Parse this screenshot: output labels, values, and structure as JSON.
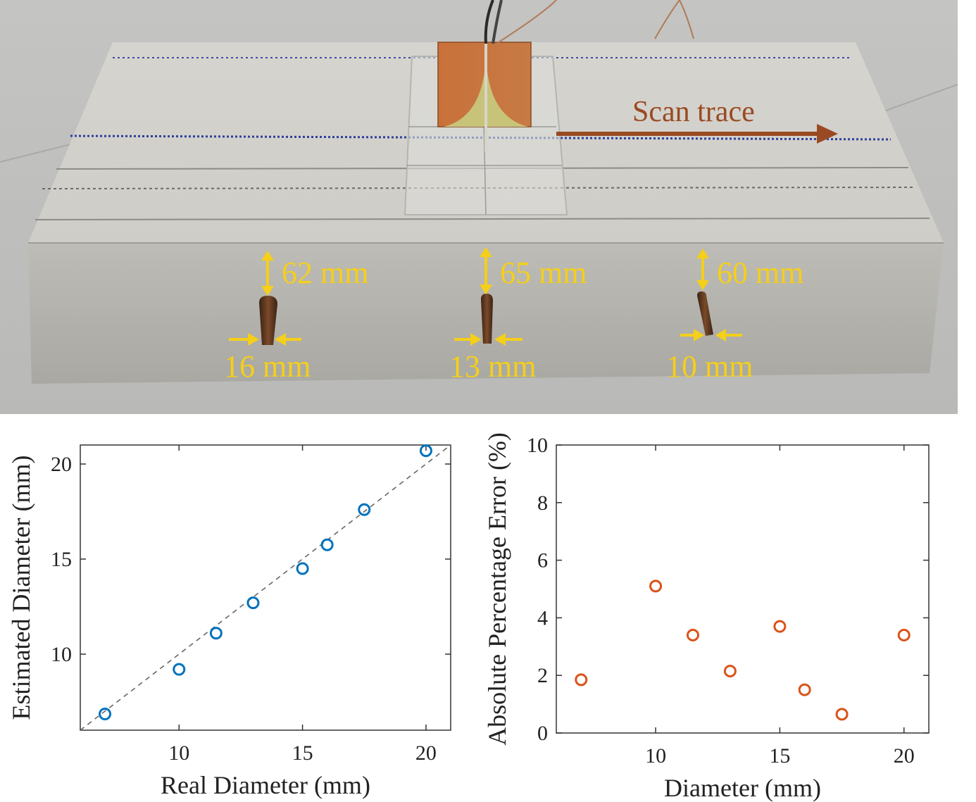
{
  "photo": {
    "scan_label": "Scan trace",
    "rebars": [
      {
        "depth_label": "62 mm",
        "diameter_label": "16 mm"
      },
      {
        "depth_label": "65 mm",
        "diameter_label": "13 mm"
      },
      {
        "depth_label": "60 mm",
        "diameter_label": "10 mm"
      }
    ]
  },
  "chart_data": [
    {
      "type": "scatter",
      "xlabel": "Real Diameter (mm)",
      "ylabel": "Estimated Diameter (mm)",
      "xlim": [
        6,
        21
      ],
      "ylim": [
        6,
        21
      ],
      "xticks": [
        10,
        15,
        20
      ],
      "yticks": [
        10,
        15,
        20
      ],
      "marker_color": "#0072BD",
      "reference_line": "y = x (dashed, gray)",
      "grid": false,
      "x": [
        7,
        10,
        11.5,
        13,
        15,
        16,
        17.5,
        20
      ],
      "y": [
        6.85,
        9.2,
        11.1,
        12.7,
        14.5,
        15.75,
        17.6,
        20.7
      ]
    },
    {
      "type": "scatter",
      "xlabel": "Diameter (mm)",
      "ylabel": "Absolute Percentage Error (%)",
      "xlim": [
        6,
        21
      ],
      "ylim": [
        0,
        10
      ],
      "xticks": [
        10,
        15,
        20
      ],
      "yticks": [
        0,
        2,
        4,
        6,
        8,
        10
      ],
      "marker_color": "#D95319",
      "grid": false,
      "x": [
        7,
        10,
        11.5,
        13,
        15,
        16,
        17.5,
        20
      ],
      "y": [
        1.85,
        5.1,
        3.4,
        2.15,
        3.7,
        1.5,
        0.65,
        3.4
      ]
    }
  ]
}
